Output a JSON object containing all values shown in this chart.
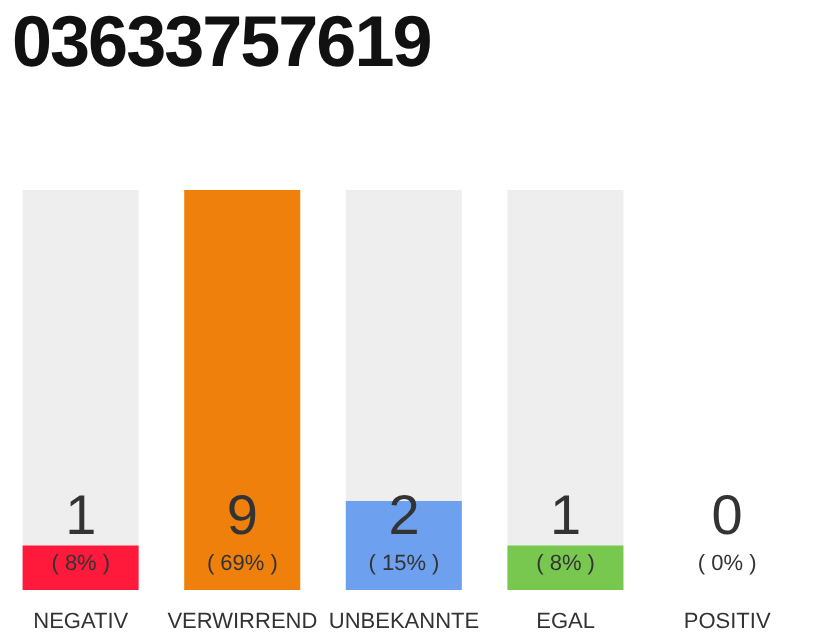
{
  "chart_data": {
    "type": "bar",
    "title": "03633757619",
    "categories": [
      "NEGATIV",
      "VERWIRREND",
      "UNBEKANNTE",
      "EGAL",
      "POSITIV"
    ],
    "values": [
      1,
      9,
      2,
      1,
      0
    ],
    "colors": [
      "#ff1a3c",
      "#f0800c",
      "#6ea0f0",
      "#78c850",
      "#cccccc"
    ],
    "data_labels": true,
    "annotations": [
      "( 8% )",
      "( 69% )",
      "( 15% )",
      "( 8% )",
      "( 0% )"
    ],
    "grid": false,
    "legend": false
  }
}
